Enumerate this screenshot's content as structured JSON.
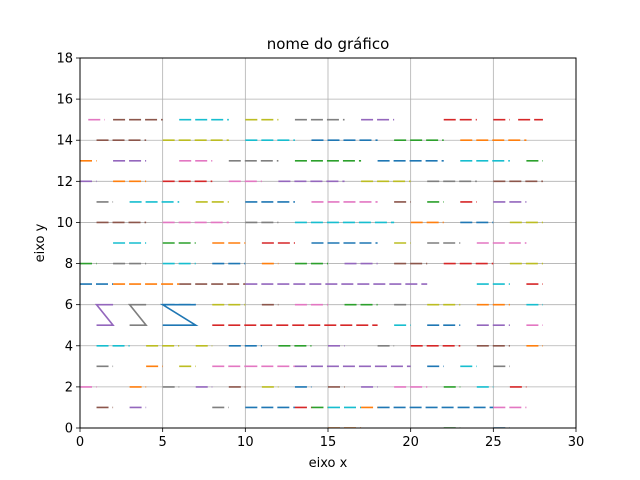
{
  "chart_data": {
    "type": "line",
    "title": "nome do gráfico",
    "xlabel": "eixo x",
    "ylabel": "eixo y",
    "xlim": [
      0,
      30
    ],
    "ylim": [
      0,
      18
    ],
    "xticks": [
      0,
      5,
      10,
      15,
      20,
      25,
      30
    ],
    "yticks": [
      0,
      2,
      4,
      6,
      8,
      10,
      12,
      14,
      16,
      18
    ],
    "grid": true,
    "legend": "none",
    "palette": [
      "#1f77b4",
      "#ff7f0e",
      "#2ca02c",
      "#d62728",
      "#9467bd",
      "#8c564b",
      "#e377c2",
      "#7f7f7f",
      "#bcbd22",
      "#17becf"
    ],
    "zigzags": [
      {
        "x": [
          1,
          2,
          1,
          2
        ],
        "y": [
          5,
          5,
          6,
          6
        ],
        "color": "#9467bd"
      },
      {
        "x": [
          3,
          4,
          3,
          4
        ],
        "y": [
          5,
          5,
          6,
          6
        ],
        "color": "#7f7f7f"
      },
      {
        "x": [
          5,
          7,
          5,
          7
        ],
        "y": [
          5,
          5,
          6,
          6
        ],
        "color": "#1f77b4"
      }
    ],
    "dashed_rows": [
      {
        "y": 15,
        "segments": [
          [
            0.5,
            1.5,
            6
          ],
          [
            2,
            5,
            5
          ],
          [
            6,
            9,
            9
          ],
          [
            10,
            12,
            8
          ],
          [
            13,
            16,
            7
          ],
          [
            17,
            19,
            4
          ],
          [
            22,
            24,
            3
          ],
          [
            25,
            26,
            3
          ],
          [
            26.5,
            28,
            3
          ]
        ]
      },
      {
        "y": 14,
        "segments": [
          [
            1,
            4,
            5
          ],
          [
            5,
            9,
            8
          ],
          [
            10,
            13,
            9
          ],
          [
            14,
            18,
            0
          ],
          [
            19,
            22,
            2
          ],
          [
            23,
            27,
            1
          ]
        ]
      },
      {
        "y": 13,
        "segments": [
          [
            0,
            1,
            1
          ],
          [
            2,
            4,
            4
          ],
          [
            6,
            8,
            6
          ],
          [
            9,
            12,
            7
          ],
          [
            13,
            17,
            2
          ],
          [
            18,
            22,
            0
          ],
          [
            23,
            26,
            9
          ],
          [
            27,
            28,
            2
          ]
        ]
      },
      {
        "y": 12,
        "segments": [
          [
            0,
            1,
            4
          ],
          [
            2,
            4,
            1
          ],
          [
            5,
            8,
            3
          ],
          [
            9,
            11,
            6
          ],
          [
            12,
            16,
            4
          ],
          [
            17,
            20,
            8
          ],
          [
            21,
            24,
            7
          ],
          [
            25,
            28,
            5
          ]
        ]
      },
      {
        "y": 11,
        "segments": [
          [
            1,
            2,
            7
          ],
          [
            3,
            6,
            9
          ],
          [
            7,
            9,
            8
          ],
          [
            10,
            13,
            0
          ],
          [
            14,
            18,
            6
          ],
          [
            19,
            20,
            5
          ],
          [
            21,
            22,
            2
          ],
          [
            23,
            24,
            3
          ],
          [
            25,
            27,
            4
          ]
        ]
      },
      {
        "y": 10,
        "segments": [
          [
            1,
            4,
            5
          ],
          [
            5,
            9,
            6
          ],
          [
            10,
            12,
            7
          ],
          [
            13,
            19,
            9
          ],
          [
            20,
            22,
            1
          ],
          [
            23,
            25,
            0
          ],
          [
            26,
            28,
            8
          ]
        ]
      },
      {
        "y": 9,
        "segments": [
          [
            2,
            4,
            9
          ],
          [
            5,
            7,
            2
          ],
          [
            8,
            10,
            1
          ],
          [
            11,
            13,
            3
          ],
          [
            14,
            18,
            0
          ],
          [
            19,
            20,
            8
          ],
          [
            21,
            23,
            7
          ],
          [
            24,
            27,
            6
          ]
        ]
      },
      {
        "y": 8,
        "segments": [
          [
            0,
            1,
            2
          ],
          [
            2,
            4,
            7
          ],
          [
            5,
            7,
            9
          ],
          [
            8,
            10,
            0
          ],
          [
            11,
            12,
            1
          ],
          [
            13,
            15,
            2
          ],
          [
            16,
            18,
            4
          ],
          [
            19,
            21,
            5
          ],
          [
            22,
            25,
            3
          ],
          [
            26,
            28,
            8
          ]
        ]
      },
      {
        "y": 7,
        "segments": [
          [
            0,
            2,
            0
          ],
          [
            2,
            6,
            1
          ],
          [
            6,
            10,
            5
          ],
          [
            10,
            21,
            4
          ],
          [
            24,
            26,
            9
          ],
          [
            27,
            28,
            3
          ]
        ]
      },
      {
        "y": 6,
        "segments": [
          [
            5,
            7,
            0
          ],
          [
            8,
            10,
            8
          ],
          [
            11,
            12,
            5
          ],
          [
            13,
            15,
            6
          ],
          [
            16,
            18,
            2
          ],
          [
            19,
            20,
            7
          ],
          [
            21,
            23,
            8
          ],
          [
            24,
            26,
            1
          ],
          [
            27,
            28,
            9
          ]
        ]
      },
      {
        "y": 5,
        "segments": [
          [
            8,
            18,
            3
          ],
          [
            19,
            20,
            9
          ],
          [
            21,
            23,
            0
          ],
          [
            24,
            26,
            4
          ],
          [
            27,
            28,
            6
          ]
        ]
      },
      {
        "y": 4,
        "segments": [
          [
            1,
            3,
            9
          ],
          [
            4,
            6,
            8
          ],
          [
            7,
            8,
            8
          ],
          [
            9,
            11,
            0
          ],
          [
            12,
            14,
            2
          ],
          [
            15,
            16,
            4
          ],
          [
            18,
            19,
            7
          ],
          [
            20,
            23,
            3
          ],
          [
            24,
            26,
            5
          ],
          [
            27,
            28,
            1
          ]
        ]
      },
      {
        "y": 3,
        "segments": [
          [
            1,
            2,
            7
          ],
          [
            4,
            5,
            1
          ],
          [
            6,
            7,
            8
          ],
          [
            8,
            10,
            6
          ],
          [
            10,
            13,
            6
          ],
          [
            13,
            20,
            4
          ],
          [
            21,
            22,
            0
          ],
          [
            23,
            24,
            9
          ],
          [
            25,
            26,
            7
          ]
        ]
      },
      {
        "y": 2,
        "segments": [
          [
            0,
            1,
            6
          ],
          [
            3,
            4,
            1
          ],
          [
            5,
            6,
            7
          ],
          [
            7,
            8,
            4
          ],
          [
            9,
            10,
            5
          ],
          [
            11,
            12,
            8
          ],
          [
            13,
            14,
            0
          ],
          [
            15,
            16,
            5
          ],
          [
            17,
            18,
            4
          ],
          [
            19,
            21,
            6
          ],
          [
            22,
            23,
            2
          ],
          [
            24,
            25,
            9
          ],
          [
            26,
            27,
            3
          ]
        ]
      },
      {
        "y": 1,
        "segments": [
          [
            1,
            2,
            5
          ],
          [
            3,
            4,
            4
          ],
          [
            8,
            9,
            7
          ],
          [
            10,
            13,
            0
          ],
          [
            13,
            14,
            3
          ],
          [
            14,
            15,
            2
          ],
          [
            15,
            17,
            9
          ],
          [
            17,
            18,
            1
          ],
          [
            18,
            25,
            0
          ],
          [
            25,
            27,
            6
          ]
        ]
      },
      {
        "y": 0,
        "segments": [
          [
            15,
            17,
            1
          ],
          [
            22,
            23,
            2
          ],
          [
            25,
            26,
            0
          ]
        ]
      }
    ]
  }
}
